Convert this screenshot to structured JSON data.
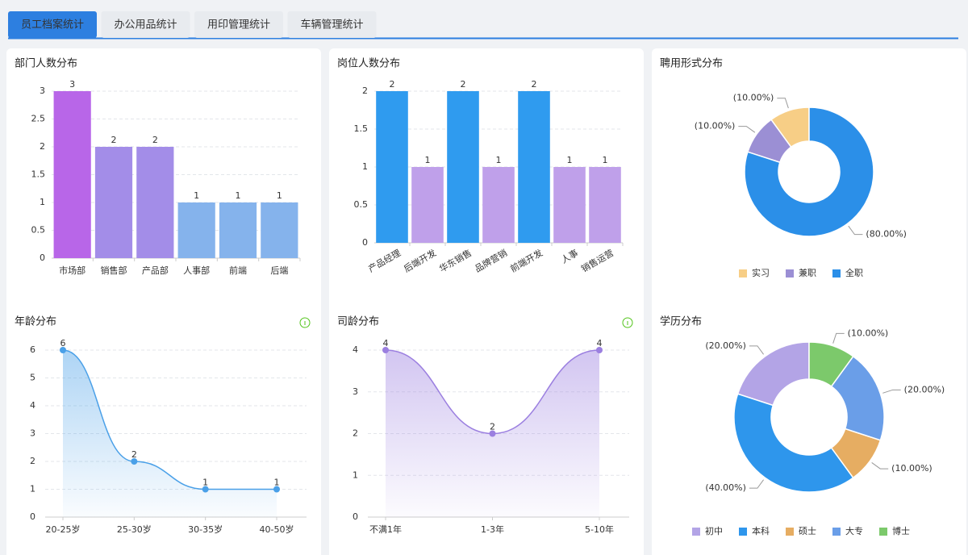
{
  "tabs": [
    "员工档案统计",
    "办公用品统计",
    "用印管理统计",
    "车辆管理统计"
  ],
  "chart_data": [
    {
      "type": "bar",
      "title": "部门人数分布",
      "categories": [
        "市场部",
        "销售部",
        "产品部",
        "人事部",
        "前端",
        "后端"
      ],
      "values": [
        3,
        2,
        2,
        1,
        1,
        1
      ],
      "colors": [
        "#b866e8",
        "#a38de8",
        "#a38de8",
        "#85b3ec",
        "#85b3ec",
        "#85b3ec"
      ],
      "ylim": [
        0,
        3
      ],
      "yticks": [
        0,
        0.5,
        1,
        1.5,
        2,
        2.5,
        3
      ],
      "grid": true
    },
    {
      "type": "bar",
      "title": "岗位人数分布",
      "categories": [
        "产品经理",
        "后端开发",
        "华东销售",
        "品牌营销",
        "前端开发",
        "人事",
        "销售运营"
      ],
      "values": [
        2,
        1,
        2,
        1,
        2,
        1,
        1
      ],
      "colors": [
        "#2f9bef",
        "#bfa0ea",
        "#2f9bef",
        "#bfa0ea",
        "#2f9bef",
        "#bfa0ea",
        "#bfa0ea"
      ],
      "ylim": [
        0,
        2
      ],
      "yticks": [
        0,
        0.5,
        1,
        1.5,
        2
      ],
      "grid": true
    },
    {
      "type": "pie",
      "title": "聘用形式分布",
      "categories": [
        "实习",
        "兼职",
        "全职"
      ],
      "values": [
        10,
        10,
        80
      ],
      "value_labels": [
        "(10.00%)",
        "(10.00%)",
        "(80.00%)"
      ],
      "colors": [
        "#f7ce86",
        "#9b8fd4",
        "#2b8fe8"
      ]
    },
    {
      "type": "line",
      "title": "年龄分布",
      "categories": [
        "20-25岁",
        "25-30岁",
        "30-35岁",
        "40-50岁"
      ],
      "values": [
        6,
        2,
        1,
        1
      ],
      "color": "#4aa0e8",
      "ylim": [
        0,
        6
      ],
      "yticks": [
        0,
        1,
        2,
        3,
        4,
        5,
        6
      ],
      "grid": true
    },
    {
      "type": "line",
      "title": "司龄分布",
      "categories": [
        "不满1年",
        "1-3年",
        "5-10年"
      ],
      "values": [
        4,
        2,
        4
      ],
      "color": "#9b7fe0",
      "ylim": [
        0,
        4
      ],
      "yticks": [
        0,
        1,
        2,
        3,
        4
      ],
      "grid": true
    },
    {
      "type": "pie",
      "title": "学历分布",
      "categories": [
        "初中",
        "本科",
        "硕士",
        "大专",
        "博士"
      ],
      "values": [
        20,
        40,
        10,
        20,
        10
      ],
      "value_labels": [
        "(20.00%)",
        "(40.00%)",
        "(10.00%)",
        "(20.00%)",
        "(10.00%)"
      ],
      "colors": [
        "#b3a4e6",
        "#2e96ec",
        "#e6ad62",
        "#6a9ee8",
        "#7cc96b"
      ]
    }
  ]
}
